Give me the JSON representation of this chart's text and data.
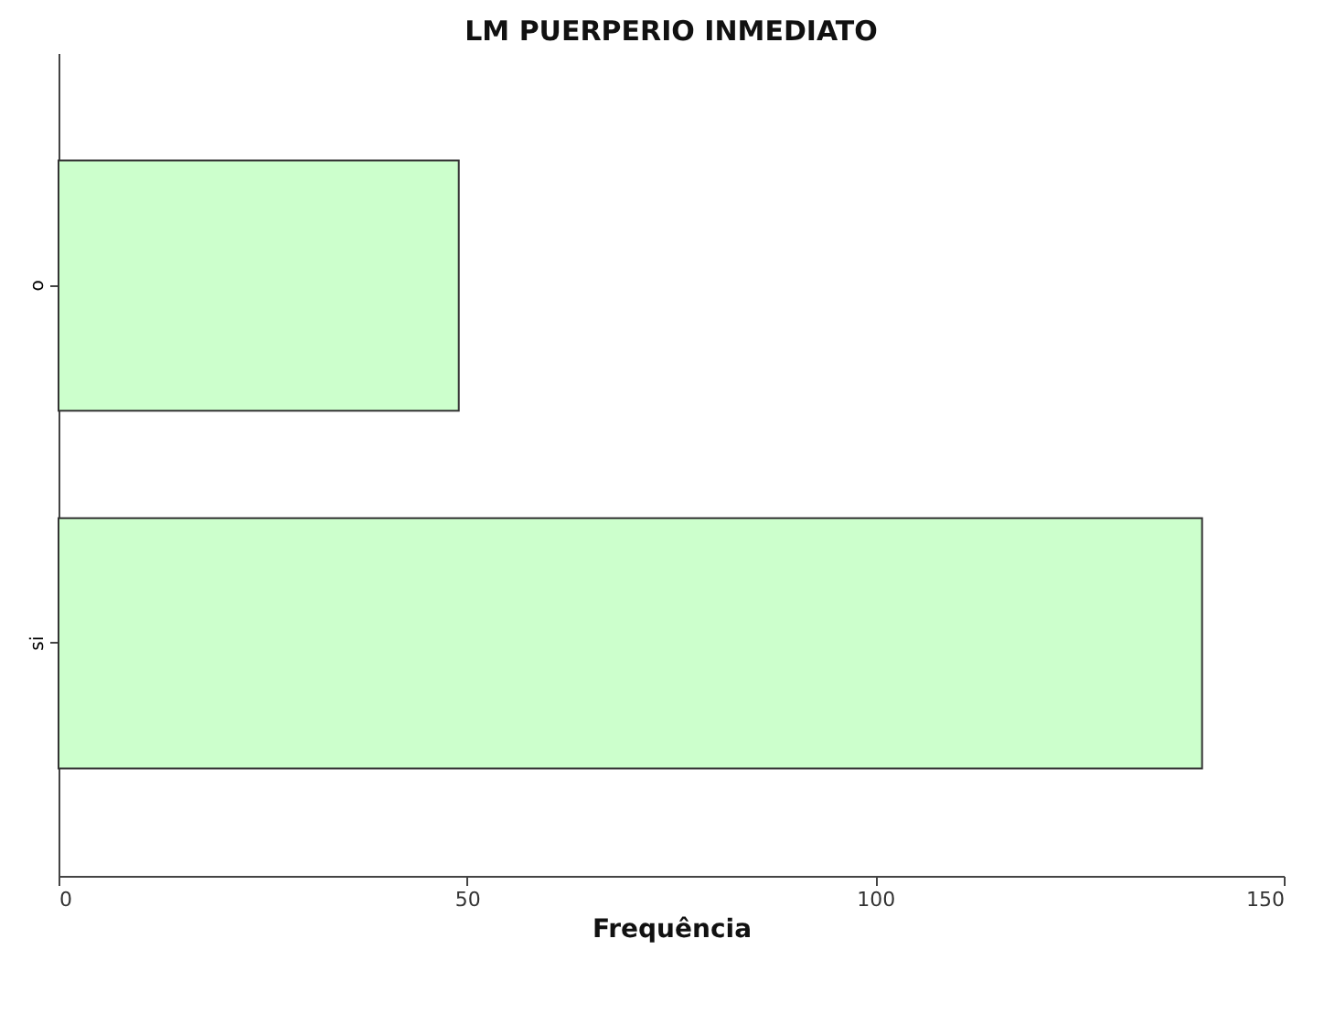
{
  "chart_data": {
    "type": "bar",
    "orientation": "horizontal",
    "title": "LM PUERPERIO INMEDIATO",
    "xlabel": "Frequência",
    "categories": [
      "o",
      "si"
    ],
    "values": [
      49,
      140
    ],
    "color": "#ccffcc",
    "xlim": [
      0,
      150
    ],
    "xticks": [
      0,
      50,
      100,
      150
    ]
  }
}
